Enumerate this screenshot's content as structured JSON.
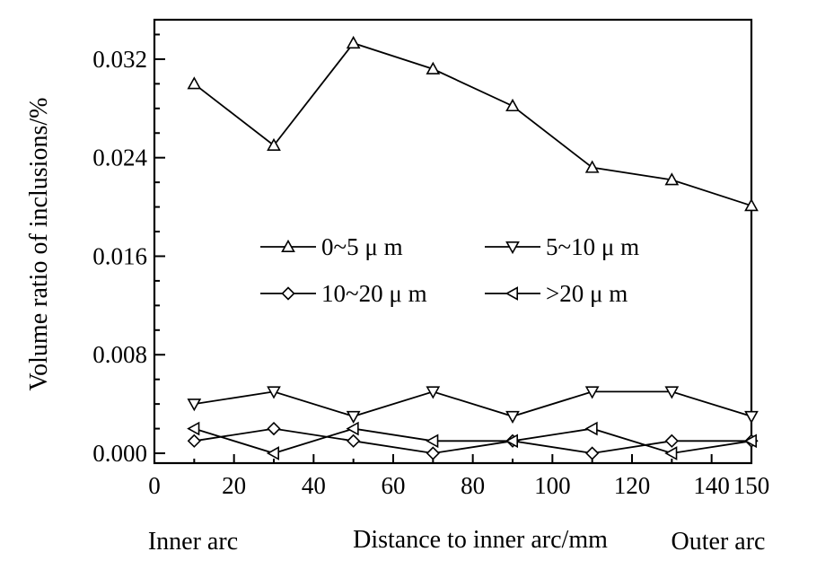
{
  "chart_data": {
    "type": "line",
    "x": [
      10,
      30,
      50,
      70,
      90,
      110,
      130,
      150
    ],
    "series": [
      {
        "name": "0~5 μ m",
        "marker": "triangle-up",
        "values": [
          0.03,
          0.025,
          0.0333,
          0.0312,
          0.0282,
          0.0232,
          0.0222,
          0.0201
        ]
      },
      {
        "name": "5~10 μ m",
        "marker": "triangle-down",
        "values": [
          0.004,
          0.005,
          0.003,
          0.005,
          0.003,
          0.005,
          0.005,
          0.003
        ]
      },
      {
        "name": "10~20 μ m",
        "marker": "diamond",
        "values": [
          0.001,
          0.002,
          0.001,
          0.0,
          0.001,
          0.0,
          0.001,
          0.001
        ]
      },
      {
        "name": ">20 μ m",
        "marker": "triangle-left",
        "values": [
          0.002,
          0.0,
          0.002,
          0.001,
          0.001,
          0.002,
          0.0,
          0.001
        ]
      }
    ],
    "xlim": [
      0,
      150
    ],
    "ylim": [
      -0.0008,
      0.0352
    ],
    "x_ticks": [
      0,
      20,
      40,
      60,
      80,
      100,
      120,
      140,
      150
    ],
    "x_tick_labels": [
      "0",
      "20",
      "40",
      "60",
      "80",
      "100",
      "120",
      "140",
      "150"
    ],
    "y_ticks": [
      0.0,
      0.008,
      0.016,
      0.024,
      0.032
    ],
    "y_tick_labels": [
      "0.000",
      "0.008",
      "0.016",
      "0.024",
      "0.032"
    ],
    "xlabel": "Distance to inner arc/mm",
    "xlabel_left": "Inner arc",
    "xlabel_right": "Outer arc",
    "ylabel": "Volume ratio of inclusions/%",
    "legend_position": "center",
    "grid": false
  }
}
